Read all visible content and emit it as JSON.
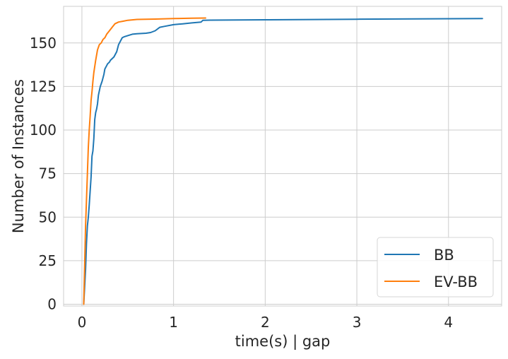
{
  "chart_data": {
    "type": "line",
    "title": "",
    "xlabel": "time(s) | gap",
    "ylabel": "Number of Instances",
    "xlim": [
      -0.2,
      4.58
    ],
    "ylim": [
      -1,
      171
    ],
    "xticks": [
      "0",
      "1",
      "2",
      "3",
      "4"
    ],
    "xtick_values": [
      0,
      1,
      2,
      3,
      4
    ],
    "yticks": [
      "0",
      "25",
      "50",
      "75",
      "100",
      "125",
      "150"
    ],
    "ytick_values": [
      0,
      25,
      50,
      75,
      100,
      125,
      150
    ],
    "grid": true,
    "legend_position": "lower right",
    "series": [
      {
        "name": "BB",
        "color": "#1f77b4",
        "x": [
          0.02,
          0.04,
          0.05,
          0.06,
          0.07,
          0.08,
          0.09,
          0.1,
          0.11,
          0.12,
          0.13,
          0.14,
          0.15,
          0.16,
          0.17,
          0.18,
          0.2,
          0.22,
          0.24,
          0.25,
          0.27,
          0.28,
          0.3,
          0.31,
          0.33,
          0.35,
          0.38,
          0.4,
          0.42,
          0.44,
          0.46,
          0.5,
          0.55,
          0.6,
          0.7,
          0.75,
          0.8,
          0.85,
          0.9,
          1.0,
          1.1,
          1.2,
          1.3,
          1.32,
          1.4,
          2.0,
          3.0,
          4.0,
          4.37
        ],
        "y": [
          0,
          20,
          35,
          45,
          50,
          57,
          65,
          73,
          85,
          88,
          95,
          106,
          110,
          112,
          115,
          120,
          125,
          128,
          132,
          135,
          137,
          138,
          139,
          140,
          141,
          142,
          145,
          149,
          151,
          153,
          153.5,
          154.2,
          155,
          155.3,
          155.6,
          156,
          157,
          159,
          159.5,
          160.5,
          161,
          161.5,
          162,
          163,
          163.1,
          163.3,
          163.6,
          163.9,
          164
        ]
      },
      {
        "name": "EV-BB",
        "color": "#ff7f0e",
        "x": [
          0.02,
          0.03,
          0.04,
          0.05,
          0.06,
          0.07,
          0.08,
          0.09,
          0.1,
          0.11,
          0.12,
          0.13,
          0.15,
          0.17,
          0.19,
          0.21,
          0.23,
          0.25,
          0.27,
          0.3,
          0.33,
          0.36,
          0.4,
          0.45,
          0.5,
          0.6,
          0.8,
          1.0,
          1.2,
          1.35
        ],
        "y": [
          0,
          22,
          45,
          60,
          75,
          90,
          100,
          108,
          117,
          122,
          128,
          133,
          140,
          146,
          149,
          150,
          152,
          153,
          155,
          157,
          159,
          161,
          162,
          162.5,
          163,
          163.5,
          163.7,
          164,
          164.2,
          164.3
        ]
      }
    ]
  }
}
